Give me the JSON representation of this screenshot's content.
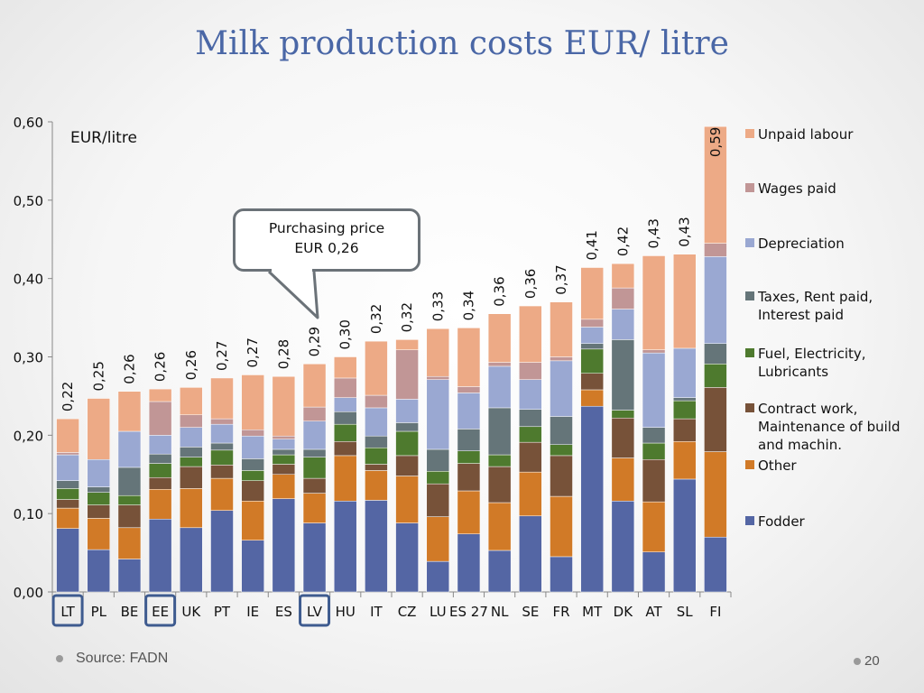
{
  "slide": {
    "title": "Milk production costs EUR/ litre",
    "source": "Source: FADN",
    "page_number": "20"
  },
  "callout": {
    "line1": "Purchasing price",
    "line2": "EUR 0,26"
  },
  "chart_data": {
    "type": "bar",
    "stacked": true,
    "unit_label": "EUR/litre",
    "ylim": [
      0,
      0.6
    ],
    "yticks": [
      "0,00",
      "0,10",
      "0,20",
      "0,30",
      "0,40",
      "0,50",
      "0,60"
    ],
    "grid": false,
    "legend_position": "right",
    "categories": [
      "LT",
      "PL",
      "BE",
      "EE",
      "UK",
      "PT",
      "IE",
      "ES",
      "LV",
      "HU",
      "IT",
      "CZ",
      "LU",
      "ES 27",
      "NL",
      "SE",
      "FR",
      "MT",
      "DK",
      "AT",
      "SL",
      "FI"
    ],
    "highlighted_categories": [
      "LT",
      "EE",
      "LV"
    ],
    "totals": [
      "0,22",
      "0,25",
      "0,26",
      "0,26",
      "0,26",
      "0,27",
      "0,27",
      "0,28",
      "0,29",
      "0,30",
      "0,32",
      "0,32",
      "0,33",
      "0,34",
      "0,36",
      "0,36",
      "0,37",
      "0,41",
      "0,42",
      "0,43",
      "0,43",
      "0,59"
    ],
    "series": [
      {
        "name": "Fodder",
        "color": "#5466a4",
        "values": [
          0.081,
          0.054,
          0.042,
          0.093,
          0.082,
          0.104,
          0.066,
          0.119,
          0.088,
          0.116,
          0.117,
          0.088,
          0.039,
          0.074,
          0.053,
          0.097,
          0.045,
          0.237,
          0.116,
          0.051,
          0.144,
          0.07
        ]
      },
      {
        "name": "Other",
        "color": "#d17a27",
        "values": [
          0.026,
          0.04,
          0.04,
          0.038,
          0.05,
          0.041,
          0.05,
          0.031,
          0.038,
          0.058,
          0.038,
          0.06,
          0.057,
          0.055,
          0.061,
          0.056,
          0.077,
          0.021,
          0.055,
          0.064,
          0.048,
          0.109
        ]
      },
      {
        "name": "Contract work, Maintenance of build and machin.",
        "color": "#775239",
        "values": [
          0.011,
          0.017,
          0.029,
          0.015,
          0.028,
          0.017,
          0.026,
          0.013,
          0.019,
          0.018,
          0.008,
          0.026,
          0.042,
          0.035,
          0.046,
          0.038,
          0.052,
          0.021,
          0.051,
          0.054,
          0.029,
          0.082
        ]
      },
      {
        "name": "Fuel, Electricity, Lubricants",
        "color": "#4e7a2e",
        "values": [
          0.014,
          0.016,
          0.012,
          0.018,
          0.012,
          0.019,
          0.013,
          0.012,
          0.027,
          0.022,
          0.021,
          0.031,
          0.016,
          0.016,
          0.015,
          0.02,
          0.014,
          0.031,
          0.01,
          0.021,
          0.023,
          0.03
        ]
      },
      {
        "name": "Taxes, Rent paid, Interest paid",
        "color": "#657579",
        "values": [
          0.01,
          0.007,
          0.036,
          0.012,
          0.013,
          0.009,
          0.015,
          0.007,
          0.01,
          0.016,
          0.015,
          0.011,
          0.028,
          0.028,
          0.06,
          0.022,
          0.036,
          0.007,
          0.09,
          0.02,
          0.004,
          0.026
        ]
      },
      {
        "name": "Depreciation",
        "color": "#9aa8d2",
        "values": [
          0.033,
          0.035,
          0.046,
          0.024,
          0.025,
          0.024,
          0.029,
          0.013,
          0.036,
          0.018,
          0.036,
          0.03,
          0.089,
          0.046,
          0.053,
          0.038,
          0.071,
          0.021,
          0.039,
          0.095,
          0.063,
          0.111
        ]
      },
      {
        "name": "Wages paid",
        "color": "#c19696",
        "values": [
          0.003,
          0.0,
          0.0,
          0.043,
          0.016,
          0.007,
          0.008,
          0.004,
          0.018,
          0.025,
          0.016,
          0.063,
          0.004,
          0.008,
          0.005,
          0.022,
          0.005,
          0.01,
          0.027,
          0.004,
          0.0,
          0.017
        ]
      },
      {
        "name": "Unpaid labour",
        "color": "#edaa86",
        "values": [
          0.043,
          0.078,
          0.051,
          0.016,
          0.035,
          0.052,
          0.07,
          0.076,
          0.055,
          0.027,
          0.069,
          0.013,
          0.061,
          0.075,
          0.062,
          0.072,
          0.07,
          0.066,
          0.031,
          0.12,
          0.12,
          0.149
        ]
      }
    ]
  }
}
